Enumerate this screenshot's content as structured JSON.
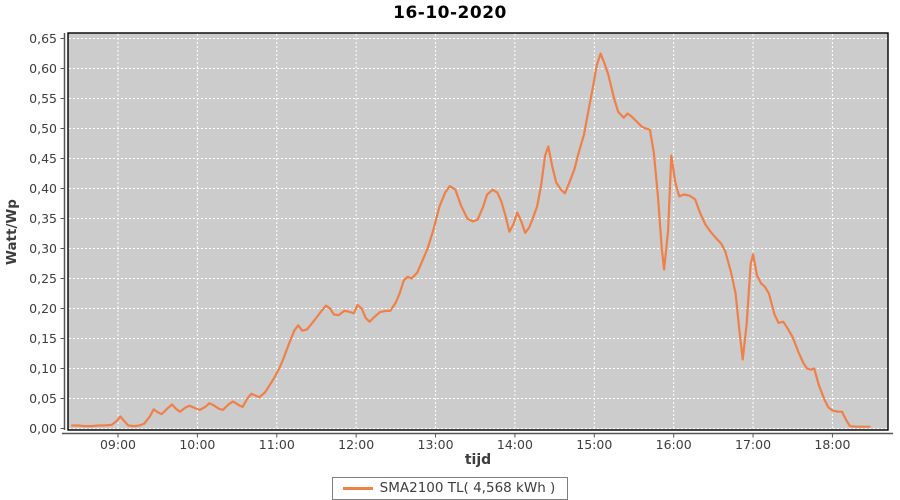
{
  "title": "16-10-2020",
  "legend": {
    "series_label": "SMA2100 TL( 4,568 kWh )"
  },
  "colors": {
    "page_background": "#ffffff",
    "plot_background": "#cccccc",
    "gridline": "#ffffff",
    "plot_border": "#000000",
    "axis_line": "#555555",
    "tick_label": "#3e3e3e",
    "axis_label": "#3d3d3d",
    "title_color": "#000000",
    "series_line": "#ef8049",
    "legend_border": "#7f7f7f",
    "legend_background": "#ffffff"
  },
  "chart_data": {
    "type": "line",
    "title": "16-10-2020",
    "xlabel": "tijd",
    "ylabel": "Watt/Wp",
    "grid": true,
    "legend_position": "bottom",
    "xlim_hours": [
      8.37,
      18.7
    ],
    "ylim": [
      0,
      0.65
    ],
    "x_tick_hours": [
      9,
      10,
      11,
      12,
      13,
      14,
      15,
      16,
      17,
      18
    ],
    "x_tick_labels": [
      "09:00",
      "10:00",
      "11:00",
      "12:00",
      "13:00",
      "14:00",
      "15:00",
      "16:00",
      "17:00",
      "18:00"
    ],
    "y_tick_values": [
      0,
      0.05,
      0.1,
      0.15,
      0.2,
      0.25,
      0.3,
      0.35,
      0.4,
      0.45,
      0.5,
      0.55,
      0.6,
      0.65
    ],
    "y_tick_labels": [
      "0,00",
      "0,05",
      "0,10",
      "0,15",
      "0,20",
      "0,25",
      "0,30",
      "0,35",
      "0,40",
      "0,45",
      "0,50",
      "0,55",
      "0,60",
      "0,65"
    ],
    "series": [
      {
        "name": "SMA2100 TL( 4,568 kWh )",
        "color": "#ef8049",
        "points": [
          [
            8.42,
            0.005
          ],
          [
            8.5,
            0.005
          ],
          [
            8.58,
            0.004
          ],
          [
            8.67,
            0.004
          ],
          [
            8.75,
            0.005
          ],
          [
            8.83,
            0.005
          ],
          [
            8.92,
            0.006
          ],
          [
            8.98,
            0.012
          ],
          [
            9.03,
            0.02
          ],
          [
            9.08,
            0.012
          ],
          [
            9.13,
            0.005
          ],
          [
            9.2,
            0.004
          ],
          [
            9.27,
            0.005
          ],
          [
            9.33,
            0.008
          ],
          [
            9.4,
            0.02
          ],
          [
            9.45,
            0.032
          ],
          [
            9.5,
            0.027
          ],
          [
            9.55,
            0.024
          ],
          [
            9.62,
            0.033
          ],
          [
            9.68,
            0.04
          ],
          [
            9.73,
            0.033
          ],
          [
            9.78,
            0.028
          ],
          [
            9.85,
            0.035
          ],
          [
            9.9,
            0.038
          ],
          [
            9.97,
            0.034
          ],
          [
            10.03,
            0.031
          ],
          [
            10.1,
            0.036
          ],
          [
            10.15,
            0.042
          ],
          [
            10.2,
            0.039
          ],
          [
            10.27,
            0.033
          ],
          [
            10.32,
            0.031
          ],
          [
            10.4,
            0.041
          ],
          [
            10.45,
            0.045
          ],
          [
            10.52,
            0.039
          ],
          [
            10.57,
            0.036
          ],
          [
            10.63,
            0.05
          ],
          [
            10.68,
            0.058
          ],
          [
            10.73,
            0.055
          ],
          [
            10.78,
            0.052
          ],
          [
            10.85,
            0.06
          ],
          [
            10.9,
            0.07
          ],
          [
            10.97,
            0.085
          ],
          [
            11.03,
            0.1
          ],
          [
            11.08,
            0.115
          ],
          [
            11.15,
            0.14
          ],
          [
            11.22,
            0.163
          ],
          [
            11.27,
            0.172
          ],
          [
            11.32,
            0.163
          ],
          [
            11.38,
            0.165
          ],
          [
            11.43,
            0.173
          ],
          [
            11.5,
            0.185
          ],
          [
            11.57,
            0.197
          ],
          [
            11.62,
            0.205
          ],
          [
            11.67,
            0.2
          ],
          [
            11.72,
            0.19
          ],
          [
            11.78,
            0.189
          ],
          [
            11.85,
            0.196
          ],
          [
            11.9,
            0.195
          ],
          [
            11.97,
            0.192
          ],
          [
            12.02,
            0.206
          ],
          [
            12.07,
            0.2
          ],
          [
            12.12,
            0.184
          ],
          [
            12.17,
            0.178
          ],
          [
            12.23,
            0.186
          ],
          [
            12.3,
            0.194
          ],
          [
            12.37,
            0.196
          ],
          [
            12.43,
            0.196
          ],
          [
            12.5,
            0.21
          ],
          [
            12.55,
            0.226
          ],
          [
            12.6,
            0.247
          ],
          [
            12.65,
            0.253
          ],
          [
            12.7,
            0.25
          ],
          [
            12.77,
            0.26
          ],
          [
            12.83,
            0.278
          ],
          [
            12.9,
            0.3
          ],
          [
            12.97,
            0.33
          ],
          [
            13.05,
            0.37
          ],
          [
            13.12,
            0.393
          ],
          [
            13.18,
            0.404
          ],
          [
            13.25,
            0.398
          ],
          [
            13.32,
            0.372
          ],
          [
            13.4,
            0.35
          ],
          [
            13.47,
            0.345
          ],
          [
            13.53,
            0.348
          ],
          [
            13.6,
            0.37
          ],
          [
            13.65,
            0.39
          ],
          [
            13.72,
            0.398
          ],
          [
            13.78,
            0.393
          ],
          [
            13.83,
            0.378
          ],
          [
            13.88,
            0.355
          ],
          [
            13.93,
            0.328
          ],
          [
            13.98,
            0.34
          ],
          [
            14.03,
            0.36
          ],
          [
            14.08,
            0.345
          ],
          [
            14.13,
            0.326
          ],
          [
            14.18,
            0.335
          ],
          [
            14.23,
            0.352
          ],
          [
            14.28,
            0.37
          ],
          [
            14.33,
            0.405
          ],
          [
            14.38,
            0.455
          ],
          [
            14.42,
            0.47
          ],
          [
            14.47,
            0.437
          ],
          [
            14.52,
            0.41
          ],
          [
            14.58,
            0.398
          ],
          [
            14.63,
            0.392
          ],
          [
            14.68,
            0.408
          ],
          [
            14.75,
            0.432
          ],
          [
            14.8,
            0.458
          ],
          [
            14.87,
            0.49
          ],
          [
            14.92,
            0.525
          ],
          [
            14.98,
            0.567
          ],
          [
            15.03,
            0.605
          ],
          [
            15.08,
            0.625
          ],
          [
            15.13,
            0.608
          ],
          [
            15.18,
            0.588
          ],
          [
            15.25,
            0.55
          ],
          [
            15.3,
            0.528
          ],
          [
            15.37,
            0.518
          ],
          [
            15.42,
            0.525
          ],
          [
            15.47,
            0.52
          ],
          [
            15.53,
            0.512
          ],
          [
            15.6,
            0.503
          ],
          [
            15.65,
            0.5
          ],
          [
            15.7,
            0.498
          ],
          [
            15.75,
            0.46
          ],
          [
            15.8,
            0.39
          ],
          [
            15.85,
            0.3
          ],
          [
            15.88,
            0.265
          ],
          [
            15.93,
            0.33
          ],
          [
            15.97,
            0.455
          ],
          [
            16.02,
            0.41
          ],
          [
            16.07,
            0.387
          ],
          [
            16.13,
            0.39
          ],
          [
            16.2,
            0.388
          ],
          [
            16.27,
            0.382
          ],
          [
            16.33,
            0.36
          ],
          [
            16.4,
            0.34
          ],
          [
            16.47,
            0.327
          ],
          [
            16.53,
            0.318
          ],
          [
            16.6,
            0.308
          ],
          [
            16.65,
            0.295
          ],
          [
            16.72,
            0.262
          ],
          [
            16.78,
            0.225
          ],
          [
            16.83,
            0.16
          ],
          [
            16.87,
            0.115
          ],
          [
            16.92,
            0.175
          ],
          [
            16.97,
            0.275
          ],
          [
            17.0,
            0.29
          ],
          [
            17.05,
            0.255
          ],
          [
            17.1,
            0.242
          ],
          [
            17.15,
            0.236
          ],
          [
            17.2,
            0.225
          ],
          [
            17.27,
            0.19
          ],
          [
            17.32,
            0.176
          ],
          [
            17.38,
            0.178
          ],
          [
            17.43,
            0.168
          ],
          [
            17.5,
            0.152
          ],
          [
            17.57,
            0.128
          ],
          [
            17.63,
            0.11
          ],
          [
            17.68,
            0.1
          ],
          [
            17.73,
            0.098
          ],
          [
            17.77,
            0.1
          ],
          [
            17.83,
            0.072
          ],
          [
            17.9,
            0.048
          ],
          [
            17.95,
            0.035
          ],
          [
            18.0,
            0.03
          ],
          [
            18.07,
            0.028
          ],
          [
            18.12,
            0.028
          ],
          [
            18.17,
            0.015
          ],
          [
            18.22,
            0.004
          ],
          [
            18.3,
            0.003
          ],
          [
            18.4,
            0.003
          ],
          [
            18.47,
            0.003
          ]
        ]
      }
    ]
  }
}
